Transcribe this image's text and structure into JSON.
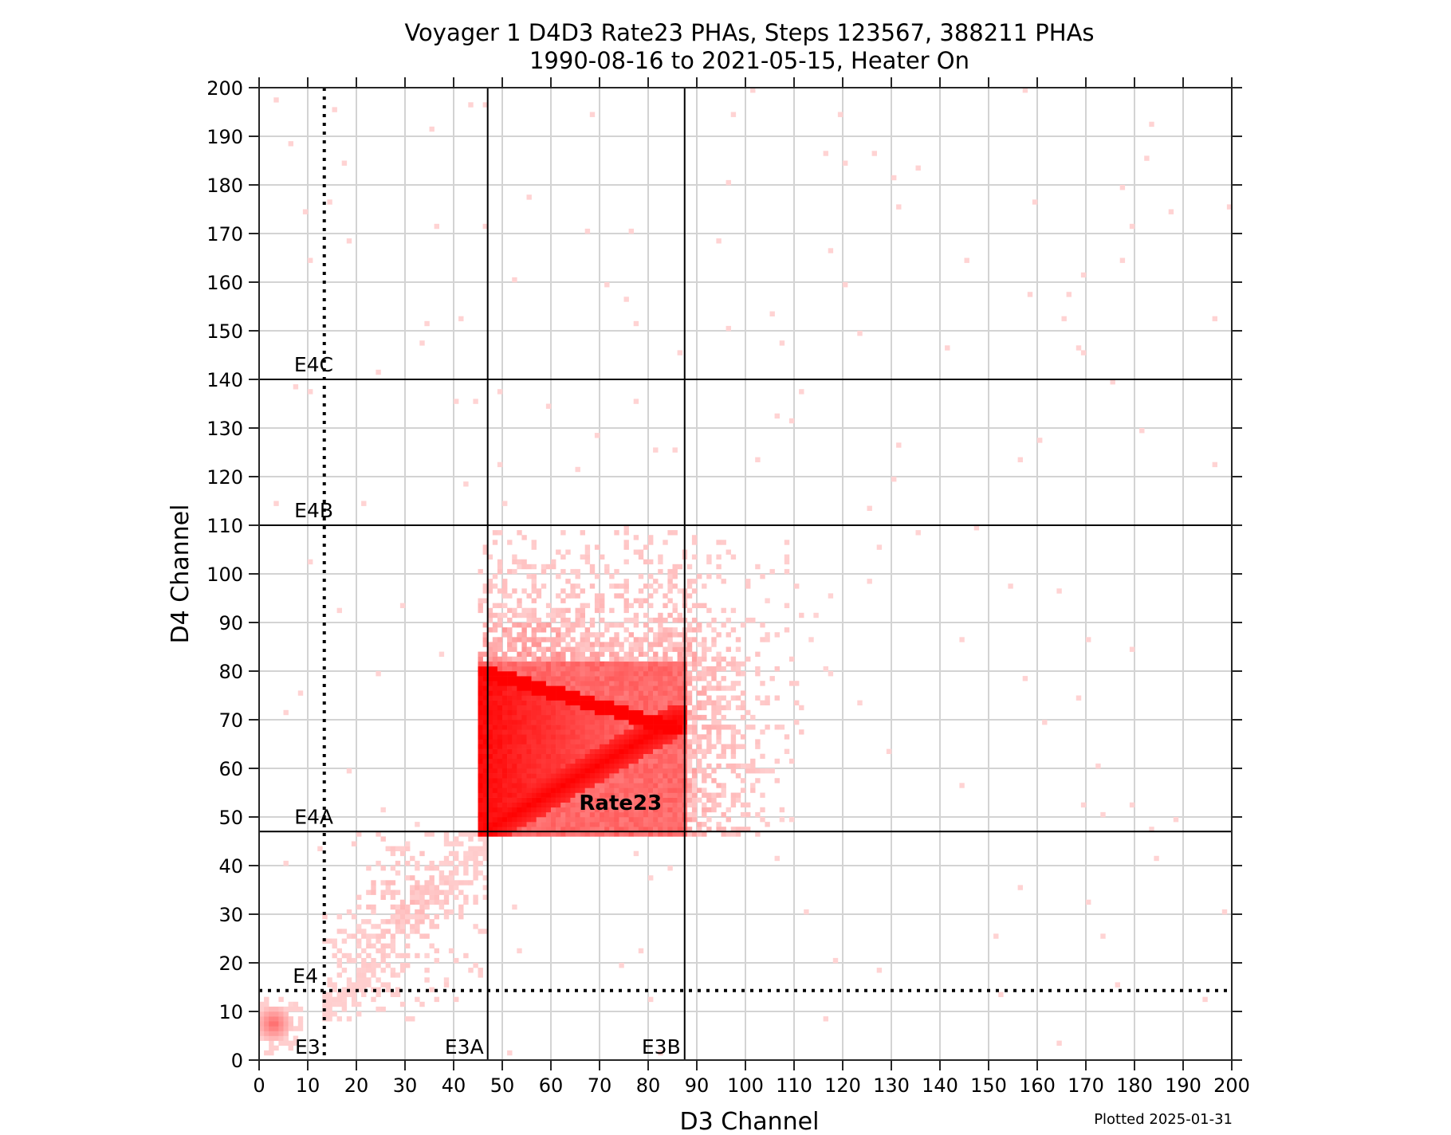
{
  "chart_data": {
    "type": "heatmap",
    "title": "Voyager 1 D4D3 Rate23 PHAs, Steps 123567, 388211 PHAs",
    "subtitle": "1990-08-16 to 2021-05-15, Heater On",
    "xlabel": "D3 Channel",
    "ylabel": "D4 Channel",
    "xlim": [
      0,
      200
    ],
    "ylim": [
      0,
      200
    ],
    "xticks": [
      0,
      10,
      20,
      30,
      40,
      50,
      60,
      70,
      80,
      90,
      100,
      110,
      120,
      130,
      140,
      150,
      160,
      170,
      180,
      190,
      200
    ],
    "yticks": [
      0,
      10,
      20,
      30,
      40,
      50,
      60,
      70,
      80,
      90,
      100,
      110,
      120,
      130,
      140,
      150,
      160,
      170,
      180,
      190,
      200
    ],
    "grid": true,
    "colormap": "white-to-red (log counts)",
    "color_max": "#ff0000",
    "color_min": "#ffe0e0",
    "total_phas": 388211,
    "steps": "123567",
    "date_range": [
      "1990-08-16",
      "2021-05-15"
    ],
    "heater": "On",
    "threshold_lines": [
      {
        "label": "E3",
        "axis": "x",
        "value": 13.4,
        "style": "dotted"
      },
      {
        "label": "E3A",
        "axis": "x",
        "value": 47,
        "style": "solid"
      },
      {
        "label": "E3B",
        "axis": "x",
        "value": 87.5,
        "style": "solid"
      },
      {
        "label": "E4",
        "axis": "y",
        "value": 14.3,
        "style": "dotted"
      },
      {
        "label": "E4A",
        "axis": "y",
        "value": 47,
        "style": "solid"
      },
      {
        "label": "E4B",
        "axis": "y",
        "value": 110,
        "style": "solid"
      },
      {
        "label": "E4C",
        "axis": "y",
        "value": 140,
        "style": "solid"
      }
    ],
    "annotations": [
      {
        "text": "Rate23",
        "x": 74,
        "y": 52,
        "bold": true
      }
    ],
    "features": [
      {
        "name": "dense core",
        "x_range": [
          46,
          87
        ],
        "y_range": [
          46,
          81
        ],
        "level": "high"
      },
      {
        "name": "upper track",
        "from": [
          46,
          80
        ],
        "to": [
          86,
          68
        ],
        "level": "max"
      },
      {
        "name": "lower track",
        "from": [
          46,
          47
        ],
        "to": [
          86,
          70
        ],
        "level": "max"
      },
      {
        "name": "diffuse halo",
        "x_range": [
          46,
          112
        ],
        "y_range": [
          46,
          110
        ],
        "level": "low"
      },
      {
        "name": "below-threshold diagonal band",
        "x_range": [
          13,
          47
        ],
        "y_range": [
          10,
          47
        ],
        "level": "low",
        "peak": [
          30,
          33
        ]
      },
      {
        "name": "noise blob",
        "x": 3,
        "y": 7,
        "level": "medium"
      }
    ]
  },
  "footer": {
    "plotted_note": "Plotted 2025-01-31"
  }
}
